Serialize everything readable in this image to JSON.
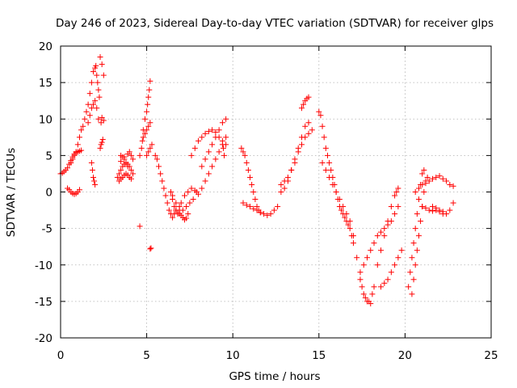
{
  "chart_data": {
    "type": "scatter",
    "title": "Day 246 of 2023, Sidereal Day-to-day VTEC variation (SDTVAR) for receiver glps",
    "xlabel": "GPS time / hours",
    "ylabel": "SDTVAR / TECUs",
    "xlim": [
      0,
      25
    ],
    "ylim": [
      -20,
      20
    ],
    "xticks": [
      "0",
      "5",
      "10",
      "15",
      "20",
      "25"
    ],
    "yticks": [
      "20",
      "15",
      "10",
      "5",
      "0",
      "-5",
      "-10",
      "-15",
      "-20"
    ],
    "grid": true,
    "marker": "plus",
    "color": "#ff0000",
    "series": [
      {
        "name": "glps",
        "x": [
          0.0,
          0.1,
          0.2,
          0.3,
          0.4,
          0.5,
          0.6,
          0.7,
          0.8,
          0.9,
          1.0,
          1.1,
          1.2,
          0.4,
          0.5,
          0.6,
          0.7,
          0.8,
          0.9,
          1.0,
          1.1,
          0.6,
          0.7,
          0.8,
          0.9,
          1.0,
          1.1,
          1.2,
          1.3,
          1.4,
          1.5,
          1.6,
          1.7,
          1.8,
          1.9,
          2.0,
          2.05,
          2.1,
          2.15,
          2.2,
          2.25,
          2.3,
          2.4,
          2.5,
          1.6,
          1.7,
          1.8,
          1.9,
          2.0,
          2.1,
          2.2,
          2.35,
          2.4,
          1.8,
          1.85,
          1.9,
          1.95,
          2.0,
          2.3,
          2.35,
          2.4,
          2.45,
          2.5,
          3.3,
          3.4,
          3.5,
          3.6,
          3.7,
          3.8,
          3.9,
          4.0,
          4.1,
          4.2,
          3.4,
          3.5,
          3.6,
          3.7,
          3.8,
          3.9,
          4.0,
          4.1,
          3.5,
          3.6,
          3.7,
          3.8,
          3.9,
          4.0,
          4.1,
          4.2,
          3.5,
          3.7,
          3.9,
          4.6,
          4.7,
          4.75,
          4.8,
          4.9,
          5.0,
          5.05,
          5.1,
          5.15,
          5.2,
          5.0,
          5.1,
          5.2,
          5.3,
          4.8,
          4.9,
          5.0,
          5.1,
          5.2,
          4.6,
          5.2,
          5.25,
          5.5,
          5.6,
          5.7,
          5.8,
          5.9,
          6.0,
          6.1,
          6.2,
          6.3,
          6.4,
          6.5,
          6.6,
          6.7,
          6.8,
          6.9,
          7.0,
          7.1,
          7.2,
          7.3,
          7.4,
          6.4,
          6.5,
          6.6,
          6.7,
          6.8,
          6.9,
          7.0,
          7.2,
          7.4,
          7.6,
          7.8,
          8.0,
          6.5,
          6.7,
          6.9,
          7.1,
          7.3,
          7.5,
          7.7,
          7.9,
          7.6,
          7.8,
          8.0,
          8.2,
          8.4,
          8.6,
          8.8,
          9.0,
          9.2,
          9.4,
          9.6,
          8.2,
          8.4,
          8.6,
          8.8,
          9.0,
          9.2,
          9.4,
          9.6,
          8.2,
          8.4,
          8.6,
          8.8,
          9.0,
          9.2,
          9.4,
          9.6,
          9.45,
          9.5,
          10.5,
          10.6,
          10.7,
          10.8,
          10.9,
          11.0,
          11.1,
          11.2,
          11.3,
          11.4,
          11.5,
          11.6,
          10.6,
          10.8,
          11.0,
          11.2,
          11.4,
          11.6,
          11.8,
          12.0,
          12.2,
          12.4,
          12.6,
          12.8,
          13.0,
          13.2,
          13.4,
          13.6,
          13.8,
          14.0,
          14.2,
          14.4,
          12.8,
          13.0,
          13.2,
          13.4,
          13.6,
          13.8,
          14.0,
          14.2,
          14.4,
          14.6,
          14.0,
          14.1,
          14.2,
          14.3,
          14.4,
          15.0,
          15.1,
          15.2,
          15.3,
          15.4,
          15.5,
          15.6,
          15.7,
          15.8,
          15.9,
          16.0,
          16.1,
          16.2,
          16.3,
          16.4,
          16.5,
          16.6,
          16.7,
          16.8,
          16.9,
          17.0,
          15.2,
          15.4,
          15.6,
          15.8,
          16.0,
          16.2,
          16.4,
          16.6,
          16.8,
          17.0,
          17.2,
          17.4,
          17.5,
          17.6,
          17.7,
          17.8,
          17.9,
          18.0,
          18.1,
          18.2,
          17.4,
          17.6,
          17.8,
          18.0,
          18.2,
          18.4,
          18.6,
          18.8,
          19.0,
          19.2,
          19.4,
          19.6,
          18.6,
          18.8,
          19.0,
          19.2,
          19.4,
          19.6,
          19.8,
          18.4,
          18.6,
          18.8,
          19.0,
          19.2,
          19.4,
          19.5,
          19.6,
          20.2,
          20.3,
          20.4,
          20.5,
          20.6,
          20.7,
          20.8,
          20.9,
          21.0,
          21.1,
          20.4,
          20.5,
          20.6,
          20.7,
          20.8,
          20.9,
          21.0,
          21.1,
          21.2,
          21.3,
          20.6,
          20.8,
          21.0,
          21.2,
          21.4,
          21.6,
          21.8,
          22.0,
          22.2,
          22.4,
          22.6,
          22.8,
          21.6,
          21.8,
          22.0,
          22.2,
          22.4,
          22.6,
          22.8,
          21.0,
          21.2,
          21.4,
          21.6,
          21.8,
          22.0,
          22.2
        ],
        "y": [
          2.5,
          2.6,
          2.8,
          3.0,
          3.3,
          3.8,
          4.3,
          4.8,
          5.2,
          5.4,
          5.5,
          5.6,
          5.7,
          0.5,
          0.3,
          0.0,
          -0.2,
          -0.3,
          -0.2,
          0.0,
          0.3,
          4.0,
          4.5,
          5.0,
          5.5,
          6.5,
          7.5,
          8.5,
          9.0,
          10.0,
          11.0,
          12.0,
          13.5,
          15.0,
          16.5,
          17.0,
          17.3,
          16.0,
          15.0,
          14.0,
          13.0,
          18.5,
          17.5,
          16.0,
          9.5,
          10.5,
          11.5,
          12.0,
          12.5,
          11.5,
          10.0,
          9.5,
          10.2,
          4.0,
          3.0,
          2.0,
          1.5,
          1.0,
          6.0,
          6.5,
          6.8,
          7.2,
          9.8,
          2.0,
          2.5,
          3.0,
          3.5,
          3.8,
          4.0,
          3.8,
          3.5,
          3.0,
          2.5,
          1.5,
          1.8,
          2.0,
          2.3,
          2.5,
          2.3,
          2.0,
          1.8,
          5.0,
          4.8,
          4.5,
          4.0,
          3.5,
          5.5,
          5.0,
          4.5,
          4.2,
          4.8,
          5.2,
          5.0,
          6.0,
          7.0,
          8.5,
          10.0,
          11.0,
          12.0,
          13.0,
          14.0,
          15.2,
          5.0,
          5.5,
          6.0,
          6.5,
          7.5,
          8.0,
          8.5,
          9.0,
          9.5,
          -4.7,
          -7.8,
          -7.7,
          5.0,
          4.5,
          3.5,
          2.5,
          1.5,
          0.5,
          -0.5,
          -1.5,
          -2.5,
          -3.0,
          -3.5,
          -3.0,
          -2.5,
          -2.8,
          -3.0,
          -3.2,
          -3.5,
          -3.8,
          -3.6,
          -3.0,
          0.0,
          -1.0,
          -2.0,
          -2.5,
          -3.0,
          -2.5,
          -1.5,
          -0.5,
          0.0,
          0.5,
          0.2,
          -0.3,
          -0.5,
          -1.5,
          -2.0,
          -2.5,
          -2.0,
          -1.5,
          -1.0,
          0.0,
          5.0,
          6.0,
          7.0,
          7.5,
          8.0,
          8.3,
          8.5,
          8.2,
          7.5,
          7.0,
          6.5,
          0.5,
          1.5,
          2.5,
          3.5,
          4.5,
          5.5,
          6.5,
          7.5,
          3.5,
          4.5,
          5.5,
          6.5,
          7.5,
          8.5,
          9.5,
          10.0,
          6.0,
          5.0,
          6.0,
          5.5,
          5.0,
          4.0,
          3.0,
          2.0,
          1.0,
          0.0,
          -1.0,
          -2.0,
          -2.5,
          -2.8,
          -1.5,
          -1.8,
          -2.0,
          -2.3,
          -2.5,
          -2.8,
          -3.0,
          -3.2,
          -3.0,
          -2.5,
          -2.0,
          0.0,
          0.5,
          1.5,
          3.0,
          4.5,
          6.0,
          7.5,
          9.0,
          9.5,
          1.0,
          1.5,
          2.0,
          3.0,
          4.0,
          5.5,
          6.5,
          7.5,
          8.0,
          8.5,
          11.5,
          12.0,
          12.5,
          12.8,
          13.0,
          11.0,
          10.5,
          9.0,
          7.5,
          6.0,
          5.0,
          4.0,
          3.0,
          2.0,
          1.0,
          0.0,
          -1.0,
          -2.0,
          -2.5,
          -3.0,
          -3.5,
          -4.0,
          -4.5,
          -5.0,
          -6.0,
          -7.0,
          4.0,
          3.0,
          2.0,
          1.0,
          0.0,
          -1.0,
          -2.0,
          -3.0,
          -4.0,
          -6.0,
          -9.0,
          -12.0,
          -13.0,
          -14.0,
          -14.5,
          -15.0,
          -15.0,
          -15.3,
          -14.0,
          -13.0,
          -11.0,
          -10.0,
          -9.0,
          -8.0,
          -7.0,
          -6.0,
          -5.5,
          -5.0,
          -4.5,
          -4.0,
          -3.0,
          -2.0,
          -13.0,
          -12.5,
          -12.0,
          -11.0,
          -10.0,
          -9.0,
          -8.0,
          -10.0,
          -8.0,
          -6.0,
          -4.0,
          -2.0,
          -0.5,
          0.0,
          0.5,
          -13.0,
          -11.0,
          -9.0,
          -7.0,
          -5.0,
          -3.0,
          -1.0,
          1.0,
          2.5,
          3.0,
          -14.0,
          -12.0,
          -10.0,
          -8.0,
          -6.0,
          -4.0,
          -2.0,
          0.0,
          1.5,
          2.0,
          0.0,
          0.5,
          1.0,
          1.2,
          1.5,
          1.8,
          2.0,
          2.2,
          1.8,
          1.5,
          1.0,
          0.8,
          -2.0,
          -2.2,
          -2.5,
          -2.7,
          -3.0,
          -2.5,
          -1.5,
          -2.0,
          -2.2,
          -2.5,
          -2.6,
          -2.5,
          -2.7,
          -3.0
        ]
      }
    ]
  }
}
